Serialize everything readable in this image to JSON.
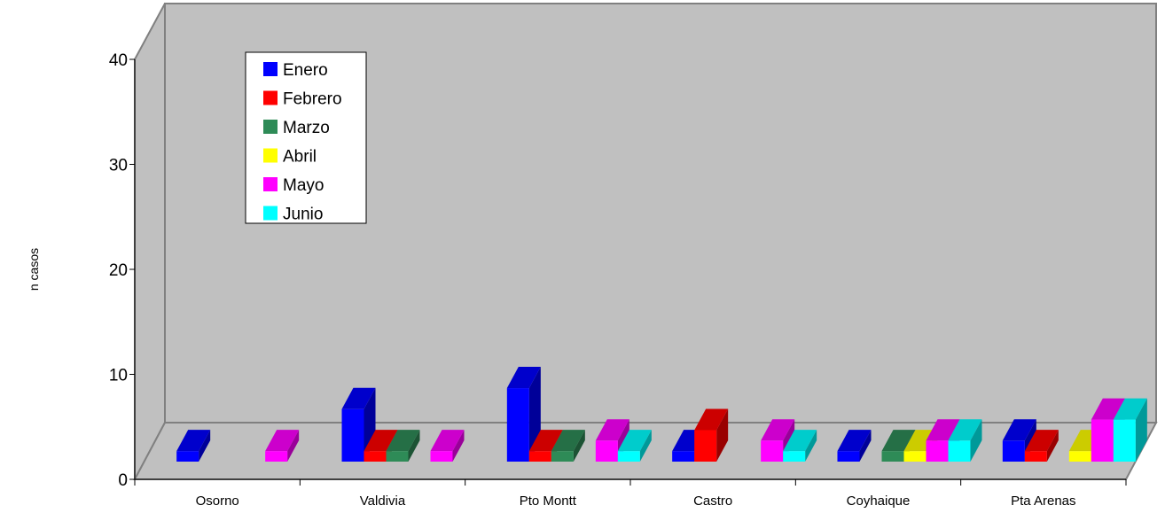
{
  "chart_data": {
    "type": "bar",
    "title": "",
    "xlabel": "",
    "ylabel": "n casos",
    "ylim": [
      0,
      40
    ],
    "yticks": [
      0,
      10,
      20,
      30,
      40
    ],
    "grid": false,
    "legend_position": "top-left",
    "three_d": true,
    "categories": [
      "Osorno",
      "Valdivia",
      "Pto Montt",
      "Castro",
      "Coyhaique",
      "Pta Arenas"
    ],
    "series": [
      {
        "name": "Enero",
        "color": "#0000FF",
        "values": [
          1,
          5,
          7,
          1,
          1,
          2
        ]
      },
      {
        "name": "Febrero",
        "color": "#FF0000",
        "values": [
          0,
          1,
          1,
          3,
          0,
          1
        ]
      },
      {
        "name": "Marzo",
        "color": "#2E8B57",
        "values": [
          0,
          1,
          1,
          0,
          1,
          0
        ]
      },
      {
        "name": "Abril",
        "color": "#FFFF00",
        "values": [
          0,
          0,
          0,
          0,
          1,
          1
        ]
      },
      {
        "name": "Mayo",
        "color": "#FF00FF",
        "values": [
          1,
          1,
          2,
          2,
          2,
          4
        ]
      },
      {
        "name": "Junio",
        "color": "#00FFFF",
        "values": [
          0,
          0,
          1,
          1,
          2,
          4
        ]
      }
    ]
  }
}
